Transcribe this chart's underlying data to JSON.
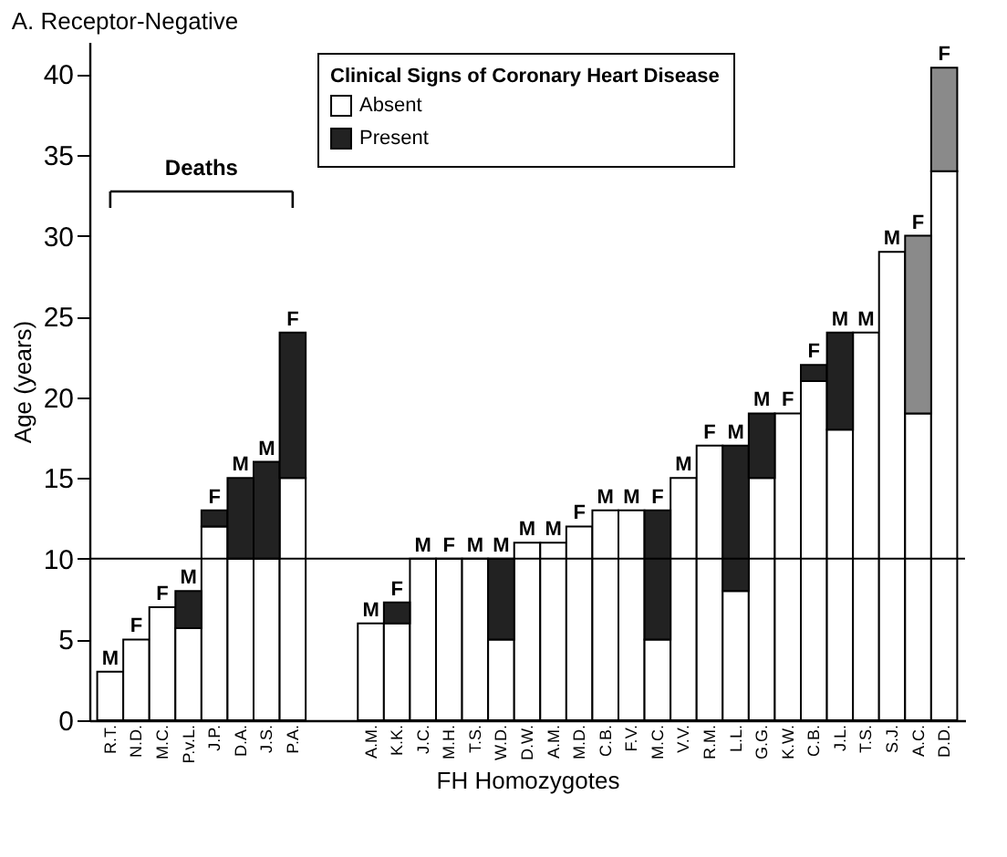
{
  "chart_data": {
    "type": "bar",
    "title": "A. Receptor-Negative",
    "xlabel": "FH Homozygotes",
    "ylabel": "Age (years)",
    "legend_title": "Clinical Signs of Coronary Heart Disease",
    "legend": "top",
    "stacked": true,
    "grid": false,
    "categories": [
      "R.T.",
      "N.D.",
      "M.C.",
      "P.v.L.",
      "J.P.",
      "D.A.",
      "J.S.",
      "P.A.",
      null,
      null,
      "A.M.",
      "K.K.",
      "J.C.",
      "M.H.",
      "T.S.",
      "W.D.",
      "D.W.",
      "A.M.",
      "M.D.",
      "C.B.",
      "F.V.",
      "M.C.",
      "V.V.",
      "R.M.",
      "L.L.",
      "G.G.",
      "K.W.",
      "C.B.",
      "J.L.",
      "T.S.",
      "S.J.",
      "A.C.",
      "D.D."
    ],
    "series": [
      {
        "name": "Absent",
        "color": "#ffffff",
        "values": [
          3,
          5,
          7,
          5.7,
          12,
          10,
          10,
          15,
          null,
          null,
          6,
          6,
          10,
          10,
          10,
          5,
          11,
          11,
          12,
          13,
          13,
          5,
          15,
          17,
          8,
          15,
          19,
          21,
          18,
          24,
          29,
          19,
          34
        ]
      },
      {
        "name": "Present",
        "color": "#222222",
        "colors": [
          null,
          null,
          null,
          "#222222",
          "#222222",
          "#222222",
          "#222222",
          "#222222",
          null,
          null,
          null,
          "#222222",
          null,
          null,
          null,
          "#222222",
          null,
          null,
          null,
          null,
          null,
          "#222222",
          null,
          null,
          "#222222",
          "#222222",
          null,
          "#222222",
          "#222222",
          null,
          null,
          "#8a8a8a",
          "#8a8a8a"
        ],
        "values": [
          null,
          null,
          null,
          2.3,
          1,
          5,
          6,
          9,
          null,
          null,
          null,
          1.3,
          null,
          null,
          null,
          5,
          null,
          null,
          null,
          null,
          null,
          8,
          null,
          null,
          9,
          4,
          null,
          1,
          6,
          null,
          null,
          11,
          6.4
        ]
      }
    ],
    "ylim": [
      0,
      42
    ],
    "yticks": [
      0,
      5,
      10,
      15,
      20,
      25,
      30,
      35,
      40
    ],
    "ref_lines": [
      {
        "axis": "y",
        "value": 10
      }
    ],
    "annotations": [
      "Deaths",
      {
        "text": "M",
        "x": "R.T.",
        "y": 3
      },
      {
        "text": "F",
        "x": "N.D.",
        "y": 5
      },
      {
        "text": "F",
        "x": "M.C.",
        "y": 7
      },
      {
        "text": "M",
        "x": "P.v.L.",
        "y": 8
      },
      {
        "text": "F",
        "x": "J.P.",
        "y": 13
      },
      {
        "text": "M",
        "x": "D.A.",
        "y": 15
      },
      {
        "text": "M",
        "x": "J.S.",
        "y": 16
      },
      {
        "text": "F",
        "x": "P.A.",
        "y": 24
      },
      {
        "text": "M",
        "x": "A.M.",
        "y": 6
      },
      {
        "text": "F",
        "x": "K.K.",
        "y": 7.3
      },
      {
        "text": "M",
        "x": "J.C.",
        "y": 10
      },
      {
        "text": "F",
        "x": "M.H.",
        "y": 10
      },
      {
        "text": "M",
        "x": "T.S.",
        "y": 10
      },
      {
        "text": "M",
        "x": "W.D.",
        "y": 10
      },
      {
        "text": "M",
        "x": "D.W.",
        "y": 11
      },
      "M",
      {
        "text": "F",
        "x": "M.D.",
        "y": 12
      },
      {
        "text": "M",
        "x": "C.B.",
        "y": 13
      },
      {
        "text": "M",
        "x": "F.V.",
        "y": 13
      },
      "F",
      {
        "text": "M",
        "x": "V.V.",
        "y": 15
      },
      {
        "text": "F",
        "x": "R.M.",
        "y": 17
      },
      {
        "text": "M",
        "x": "L.L.",
        "y": 17
      },
      {
        "text": "M",
        "x": "G.G.",
        "y": 19
      },
      {
        "text": "F",
        "x": "K.W.",
        "y": 19
      },
      "F",
      {
        "text": "M",
        "x": "J.L.",
        "y": 24
      },
      "M",
      {
        "text": "M",
        "x": "S.J.",
        "y": 29
      },
      {
        "text": "F",
        "x": "A.C.",
        "y": 30
      },
      {
        "text": "F",
        "x": "D.D.",
        "y": 40.4
      }
    ]
  }
}
